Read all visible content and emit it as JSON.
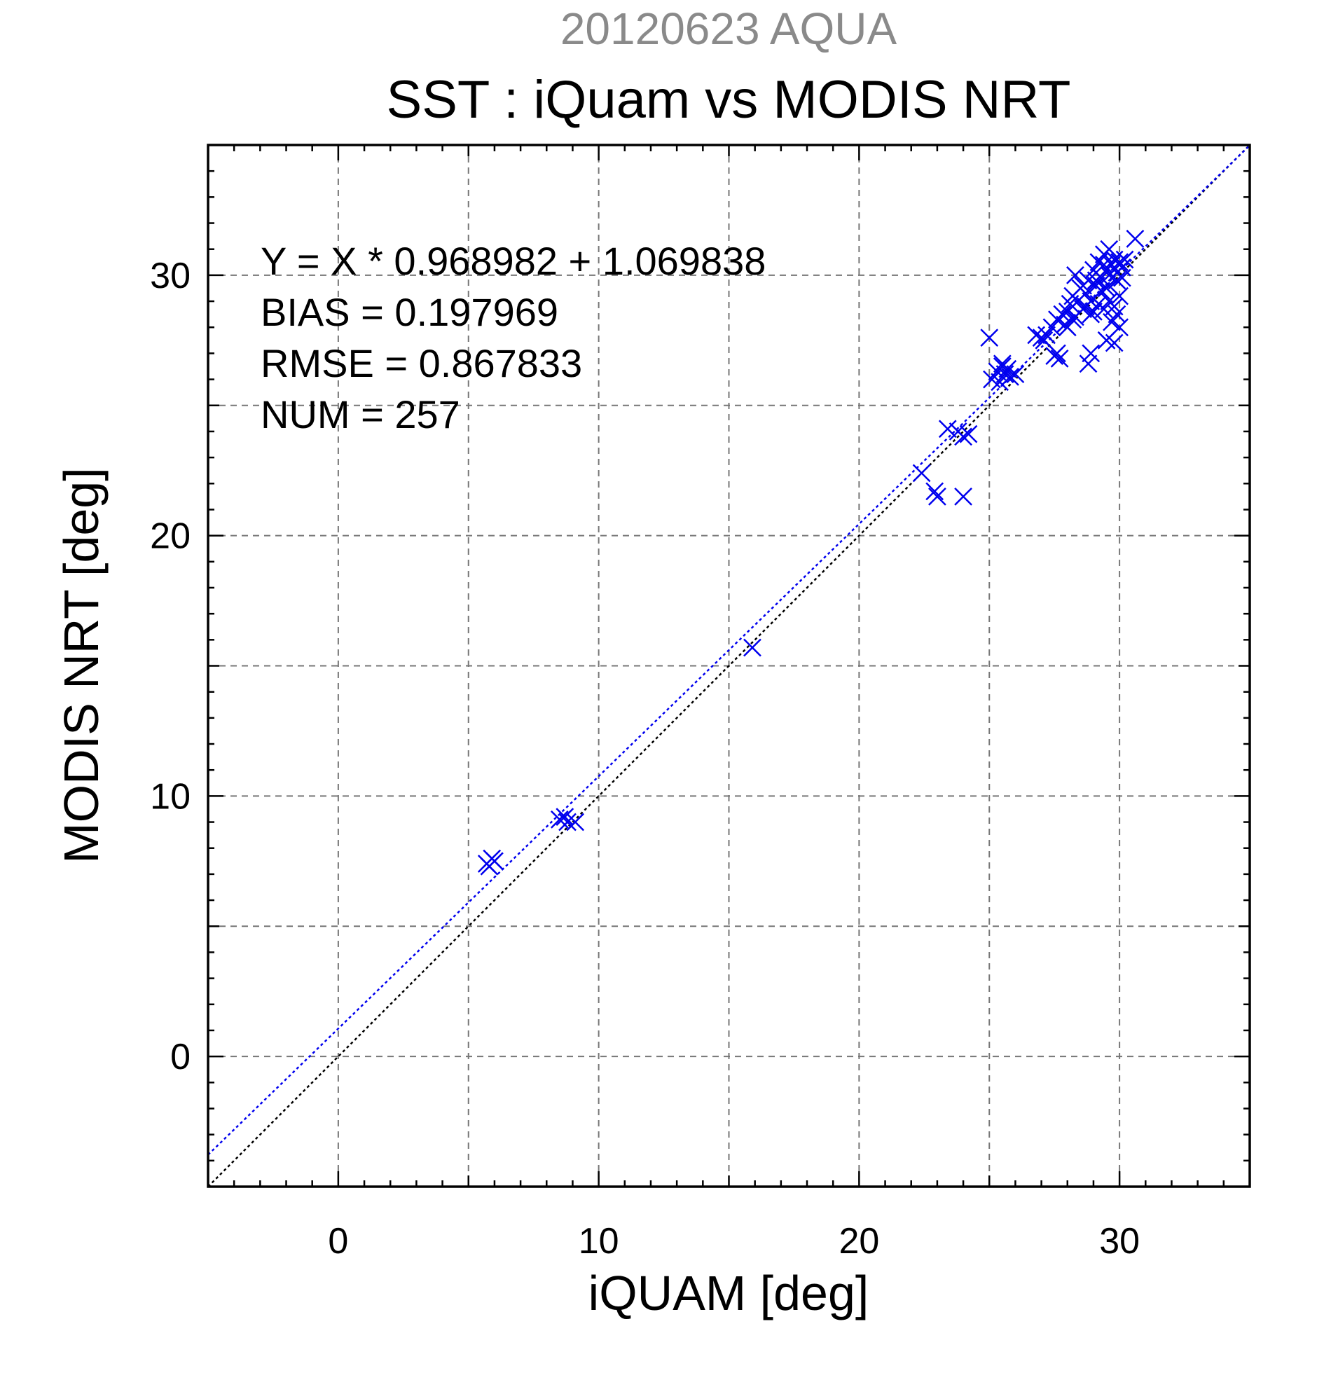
{
  "chart_data": {
    "type": "scatter",
    "date_title": "20120623 AQUA",
    "title": "SST : iQuam vs MODIS NRT",
    "xlabel": "iQUAM [deg]",
    "ylabel": "MODIS NRT [deg]",
    "xlim": [
      -5,
      35
    ],
    "ylim": [
      -5,
      35
    ],
    "xticks": [
      0,
      10,
      20,
      30
    ],
    "yticks": [
      0,
      10,
      20,
      30
    ],
    "xtick_labels": [
      "0",
      "10",
      "20",
      "30"
    ],
    "ytick_labels": [
      "0",
      "10",
      "20",
      "30"
    ],
    "grid_step": 5,
    "grid": true,
    "stats": [
      "Y = X * 0.968982 + 1.069838",
      "BIAS = 0.197969",
      "RMSE = 0.867833",
      "NUM = 257"
    ],
    "fit": {
      "slope": 0.968982,
      "intercept": 1.069838,
      "color": "#0000ee"
    },
    "reference_line": {
      "slope": 1,
      "intercept": 0,
      "color": "#000000"
    },
    "marker": "x",
    "marker_color": "#0000ee",
    "points": [
      [
        5.7,
        7.4
      ],
      [
        5.9,
        7.6
      ],
      [
        6.0,
        7.5
      ],
      [
        5.8,
        7.3
      ],
      [
        8.5,
        9.1
      ],
      [
        8.7,
        9.2
      ],
      [
        8.8,
        9.0
      ],
      [
        9.1,
        9.0
      ],
      [
        15.9,
        15.7
      ],
      [
        22.4,
        22.4
      ],
      [
        22.9,
        21.7
      ],
      [
        23.0,
        21.5
      ],
      [
        24.0,
        21.5
      ],
      [
        23.4,
        24.1
      ],
      [
        23.8,
        24.0
      ],
      [
        24.0,
        23.8
      ],
      [
        24.2,
        23.9
      ],
      [
        25.0,
        27.6
      ],
      [
        25.1,
        26.0
      ],
      [
        25.3,
        26.3
      ],
      [
        25.5,
        26.6
      ],
      [
        25.6,
        26.2
      ],
      [
        25.7,
        26.4
      ],
      [
        25.4,
        25.9
      ],
      [
        25.8,
        26.1
      ],
      [
        26.0,
        26.2
      ],
      [
        25.5,
        26.5
      ],
      [
        26.8,
        27.7
      ],
      [
        27.0,
        27.6
      ],
      [
        27.2,
        27.7
      ],
      [
        27.1,
        27.5
      ],
      [
        27.5,
        26.9
      ],
      [
        27.6,
        27.0
      ],
      [
        27.7,
        26.8
      ],
      [
        27.4,
        28.0
      ],
      [
        27.6,
        28.3
      ],
      [
        27.8,
        28.5
      ],
      [
        27.9,
        28.1
      ],
      [
        28.0,
        28.6
      ],
      [
        28.1,
        28.9
      ],
      [
        28.2,
        29.2
      ],
      [
        28.3,
        28.4
      ],
      [
        28.4,
        29.0
      ],
      [
        28.5,
        29.5
      ],
      [
        28.6,
        28.7
      ],
      [
        28.7,
        29.3
      ],
      [
        28.8,
        29.8
      ],
      [
        28.9,
        29.0
      ],
      [
        29.0,
        30.2
      ],
      [
        28.2,
        28.3
      ],
      [
        28.0,
        28.0
      ],
      [
        28.3,
        30.0
      ],
      [
        28.6,
        29.6
      ],
      [
        28.9,
        28.5
      ],
      [
        29.1,
        29.6
      ],
      [
        29.2,
        30.5
      ],
      [
        29.3,
        29.9
      ],
      [
        29.4,
        30.8
      ],
      [
        29.5,
        30.2
      ],
      [
        29.6,
        31.0
      ],
      [
        29.7,
        30.4
      ],
      [
        29.8,
        30.6
      ],
      [
        29.9,
        30.1
      ],
      [
        30.0,
        30.5
      ],
      [
        30.1,
        30.3
      ],
      [
        30.2,
        30.6
      ],
      [
        29.5,
        29.5
      ],
      [
        29.6,
        29.0
      ],
      [
        29.8,
        28.8
      ],
      [
        29.9,
        28.5
      ],
      [
        29.7,
        28.2
      ],
      [
        30.0,
        29.2
      ],
      [
        29.4,
        28.7
      ],
      [
        29.2,
        28.9
      ],
      [
        29.3,
        29.4
      ],
      [
        29.0,
        28.6
      ],
      [
        29.6,
        30.0
      ],
      [
        29.9,
        29.8
      ],
      [
        30.1,
        29.9
      ],
      [
        29.5,
        27.5
      ],
      [
        29.8,
        27.4
      ],
      [
        28.8,
        26.6
      ],
      [
        28.9,
        27.0
      ],
      [
        30.6,
        31.4
      ],
      [
        30.0,
        28.0
      ],
      [
        29.1,
        29.8
      ],
      [
        28.7,
        28.8
      ],
      [
        29.4,
        30.4
      ]
    ]
  }
}
